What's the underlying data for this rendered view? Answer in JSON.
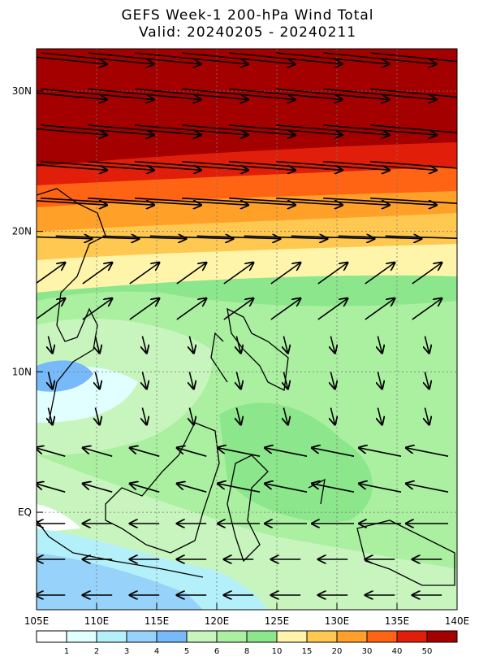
{
  "title": "GEFS Week-1 200-hPa Wind Total",
  "subtitle": "Valid: 20240205 - 20240211",
  "x_axis": {
    "labels": [
      "105E",
      "110E",
      "115E",
      "120E",
      "125E",
      "130E",
      "135E",
      "140E"
    ]
  },
  "y_axis": {
    "labels": [
      "30N",
      "20N",
      "10N",
      "EQ"
    ]
  },
  "colorbar": {
    "labels": [
      "1",
      "2",
      "3",
      "4",
      "5",
      "6",
      "8",
      "10",
      "15",
      "20",
      "30",
      "40",
      "50"
    ],
    "colors": [
      "#ffffff",
      "#e1ffff",
      "#b4f0fa",
      "#96d2fa",
      "#78b9fa",
      "#c8f5be",
      "#aaf0a0",
      "#8ce68c",
      "#fff5aa",
      "#ffc850",
      "#ffa028",
      "#ff6414",
      "#e11e0a",
      "#a50000"
    ]
  }
}
